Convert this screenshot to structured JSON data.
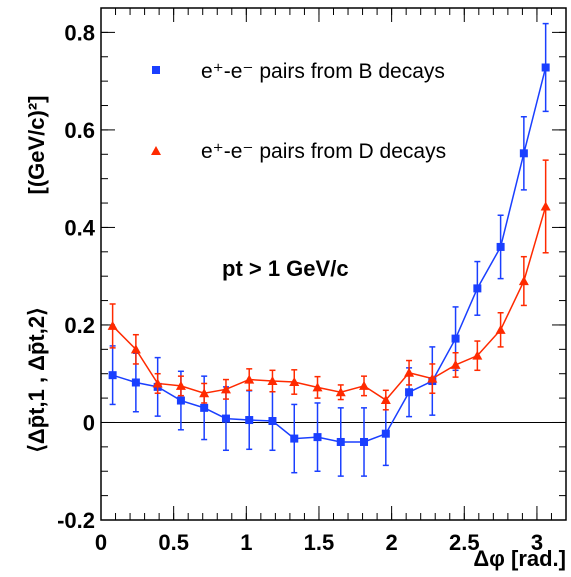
{
  "chart_data": {
    "type": "line",
    "xlim": [
      0,
      3.2
    ],
    "ylim": [
      -0.2,
      0.85
    ],
    "xticks": [
      0,
      0.5,
      1,
      1.5,
      2,
      2.5,
      3
    ],
    "xtick_labels": [
      "0",
      "0.5",
      "1",
      "1.5",
      "2",
      "2.5",
      "3"
    ],
    "yticks": [
      -0.2,
      0,
      0.2,
      0.4,
      0.6,
      0.8
    ],
    "ytick_labels": [
      "-0.2",
      "0",
      "0.2",
      "0.4",
      "0.6",
      "0.8"
    ],
    "xlabel": "Δφ [rad.]",
    "ylabel_left": "⟨Δp̄t,1 , Δp̄t,2⟩",
    "ylabel_right": "[(GeV/c)²]",
    "annotation": "pt > 1 GeV/c",
    "grid": false,
    "legend_placement": "top-center",
    "legend": [
      {
        "label": "e⁺-e⁻ pairs from B decays",
        "color": "#1a3fff",
        "marker": "square"
      },
      {
        "label": "e⁺-e⁻ pairs from D decays",
        "color": "#ff2a00",
        "marker": "triangle"
      }
    ],
    "x": [
      0.08,
      0.24,
      0.39,
      0.55,
      0.71,
      0.86,
      1.02,
      1.18,
      1.33,
      1.49,
      1.65,
      1.81,
      1.96,
      2.12,
      2.28,
      2.44,
      2.59,
      2.75,
      2.91,
      3.06
    ],
    "series": [
      {
        "name": "e⁺-e⁻ pairs from B decays",
        "color": "#1a3fff",
        "marker": "square",
        "values": [
          0.097,
          0.082,
          0.073,
          0.045,
          0.03,
          0.008,
          0.005,
          0.003,
          -0.033,
          -0.03,
          -0.04,
          -0.04,
          -0.023,
          0.062,
          0.085,
          0.172,
          0.275,
          0.36,
          0.552,
          0.728
        ],
        "errors": [
          0.06,
          0.06,
          0.06,
          0.06,
          0.065,
          0.065,
          0.06,
          0.06,
          0.07,
          0.07,
          0.07,
          0.07,
          0.065,
          0.05,
          0.07,
          0.065,
          0.055,
          0.065,
          0.075,
          0.09
        ]
      },
      {
        "name": "e⁺-e⁻ pairs from D decays",
        "color": "#ff2a00",
        "marker": "triangle",
        "values": [
          0.198,
          0.15,
          0.08,
          0.075,
          0.06,
          0.068,
          0.088,
          0.085,
          0.083,
          0.072,
          0.062,
          0.075,
          0.046,
          0.102,
          0.09,
          0.118,
          0.137,
          0.19,
          0.29,
          0.443
        ],
        "errors": [
          0.045,
          0.03,
          0.02,
          0.02,
          0.02,
          0.02,
          0.022,
          0.022,
          0.025,
          0.022,
          0.015,
          0.02,
          0.02,
          0.025,
          0.03,
          0.025,
          0.03,
          0.035,
          0.05,
          0.095
        ]
      }
    ]
  }
}
